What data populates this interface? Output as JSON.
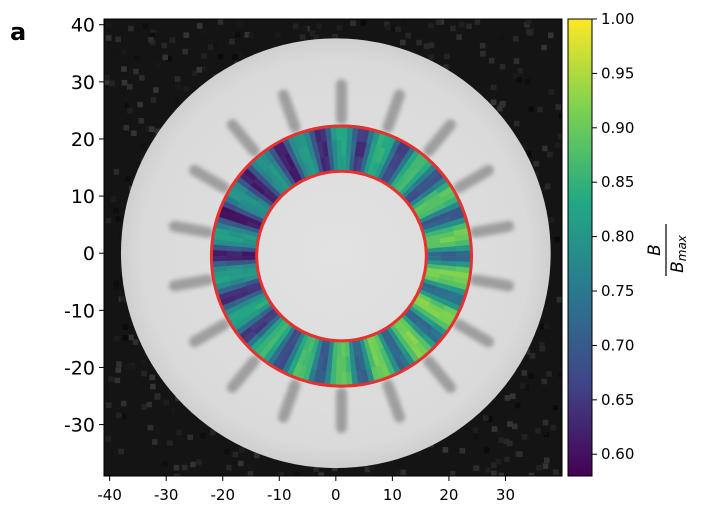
{
  "panel_label": "a",
  "colorbar": {
    "label_num": "B",
    "label_den": "B",
    "label_den_sub": "max",
    "colors": [
      "#440154",
      "#414487",
      "#2a788e",
      "#22a884",
      "#7ad151",
      "#fde725"
    ]
  },
  "ring_color": "#e8302e",
  "chart_data": {
    "type": "heatmap",
    "title": "",
    "xlabel": "",
    "ylabel": "",
    "xlim": [
      -41,
      40
    ],
    "ylim": [
      -39,
      41
    ],
    "x_ticks": [
      -40,
      -30,
      -20,
      -10,
      0,
      10,
      20,
      30
    ],
    "x_tick_labels": [
      "-40",
      "-30",
      "-20",
      "-10",
      "0",
      "10",
      "20",
      "30"
    ],
    "y_ticks": [
      40,
      30,
      20,
      10,
      0,
      -10,
      -20,
      -30
    ],
    "y_tick_labels": [
      "40",
      "30",
      "20",
      "10",
      "0",
      "-10",
      "-20",
      "-30"
    ],
    "colorbar_range": [
      0.58,
      1.0
    ],
    "colorbar_ticks": [
      1.0,
      0.95,
      0.9,
      0.85,
      0.8,
      0.75,
      0.7,
      0.65,
      0.6
    ],
    "colorbar_tick_labels": [
      "1.00",
      "0.95",
      "0.90",
      "0.85",
      "0.80",
      "0.75",
      "0.70",
      "0.65",
      "0.60"
    ],
    "background_disk_radius": 38,
    "rings": [
      {
        "center": [
          1,
          -0.5
        ],
        "radius": 23
      },
      {
        "center": [
          1,
          -0.5
        ],
        "radius": 15
      }
    ],
    "annulus_segments": 18,
    "slot_count": 18
  }
}
